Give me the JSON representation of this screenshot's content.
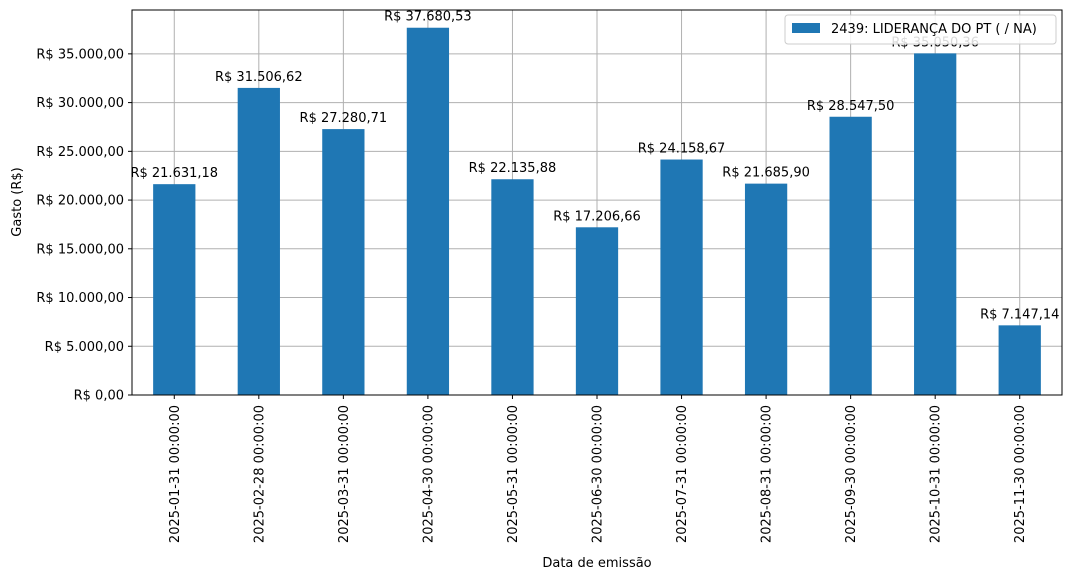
{
  "chart_data": {
    "type": "bar",
    "title": "",
    "xlabel": "Data de emissão",
    "ylabel": "Gasto (R$)",
    "ylim": [
      0,
      39500
    ],
    "yticks": [
      0,
      5000,
      10000,
      15000,
      20000,
      25000,
      30000,
      35000
    ],
    "ytick_labels": [
      "R$ 0,00",
      "R$ 5.000,00",
      "R$ 10.000,00",
      "R$ 15.000,00",
      "R$ 20.000,00",
      "R$ 25.000,00",
      "R$ 30.000,00",
      "R$ 35.000,00"
    ],
    "grid": true,
    "legend_position": "top-right",
    "categories": [
      "2025-01-31 00:00:00",
      "2025-02-28 00:00:00",
      "2025-03-31 00:00:00",
      "2025-04-30 00:00:00",
      "2025-05-31 00:00:00",
      "2025-06-30 00:00:00",
      "2025-07-31 00:00:00",
      "2025-08-31 00:00:00",
      "2025-09-30 00:00:00",
      "2025-10-31 00:00:00",
      "2025-11-30 00:00:00"
    ],
    "series": [
      {
        "name": "2439: LIDERANÇA DO PT ( / NA)",
        "color": "#1f77b4",
        "values": [
          21631.18,
          31506.62,
          27280.71,
          37680.53,
          22135.88,
          17206.66,
          24158.67,
          21685.9,
          28547.5,
          35050.36,
          7147.14
        ],
        "labels": [
          "R$ 21.631,18",
          "R$ 31.506,62",
          "R$ 27.280,71",
          "R$ 37.680,53",
          "R$ 22.135,88",
          "R$ 17.206,66",
          "R$ 24.158,67",
          "R$ 21.685,90",
          "R$ 28.547,50",
          "R$ 35.050,36",
          "R$ 7.147,14"
        ]
      }
    ]
  }
}
